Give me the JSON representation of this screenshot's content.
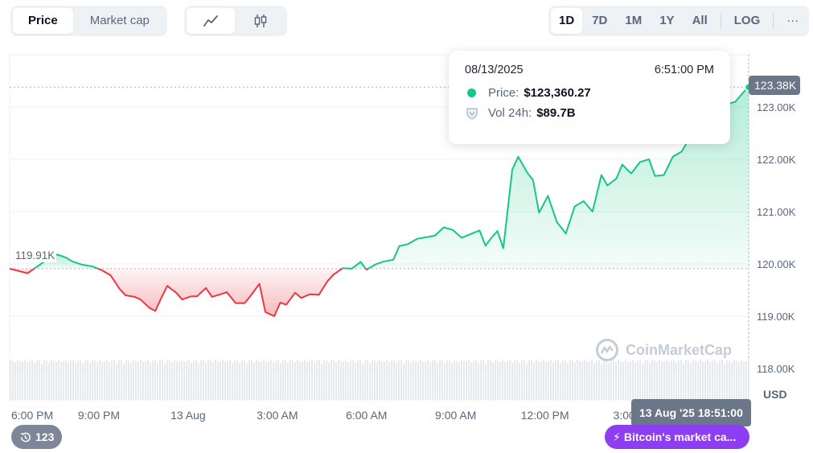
{
  "metric_tabs": [
    {
      "label": "Price",
      "active": true
    },
    {
      "label": "Market cap",
      "active": false
    }
  ],
  "chart_type_buttons": [
    {
      "icon": "line-chart-icon",
      "active": true
    },
    {
      "icon": "candlestick-icon",
      "active": false
    }
  ],
  "range_buttons": [
    {
      "label": "1D",
      "active": true
    },
    {
      "label": "7D",
      "active": false
    },
    {
      "label": "1M",
      "active": false
    },
    {
      "label": "1Y",
      "active": false
    },
    {
      "label": "All",
      "active": false
    },
    {
      "label": "LOG",
      "active": false
    }
  ],
  "more_label": "···",
  "tooltip": {
    "date": "08/13/2025",
    "time": "6:51:00 PM",
    "price_label": "Price:",
    "price_value": "$123,360.27",
    "vol_label": "Vol 24h:",
    "vol_value": "$89.7B"
  },
  "current_price_badge": "123.38K",
  "reference_price_badge": "119.91K",
  "crosshair_time": "13 Aug '25 18:51:00",
  "news_badge": "Bitcoin's market ca...",
  "history_count": "123",
  "currency": "USD",
  "watermark": "CoinMarketCap",
  "colors": {
    "up": "#16c784",
    "down": "#ea3943",
    "up_fill": "#16c784",
    "down_fill": "#ea3943",
    "volume": "#e6e9ee",
    "grid": "#eff2f5"
  },
  "chart_data": {
    "type": "line",
    "title": "",
    "xlabel": "",
    "ylabel": "USD",
    "baseline": 119910,
    "ylim": [
      117400,
      124000
    ],
    "y_ticks": [
      118000,
      119000,
      120000,
      121000,
      122000,
      123000
    ],
    "y_tick_labels": [
      "118.00K",
      "119.00K",
      "120.00K",
      "121.00K",
      "122.00K",
      "123.00K"
    ],
    "x_range": [
      0,
      24.85
    ],
    "x_ticks": [
      0,
      3,
      6,
      9,
      12,
      15,
      18,
      21,
      24
    ],
    "x_tick_labels": [
      "6:00 PM",
      "9:00 PM",
      "13 Aug",
      "3:00 AM",
      "6:00 AM",
      "9:00 AM",
      "12:00 PM",
      "3:00 PM",
      ""
    ],
    "x": [
      0,
      0.6,
      1.3,
      1.6,
      1.9,
      2.1,
      2.4,
      2.8,
      3.1,
      3.4,
      3.7,
      3.9,
      4.2,
      4.4,
      4.7,
      4.9,
      5.1,
      5.3,
      5.6,
      5.8,
      6.1,
      6.3,
      6.6,
      6.8,
      7.1,
      7.3,
      7.6,
      7.9,
      8.1,
      8.4,
      8.6,
      8.9,
      9.1,
      9.3,
      9.6,
      9.8,
      10.1,
      10.4,
      10.7,
      10.9,
      11.2,
      11.5,
      11.8,
      12.0,
      12.3,
      12.6,
      12.9,
      13.1,
      13.4,
      13.7,
      14.0,
      14.3,
      14.6,
      14.9,
      15.2,
      15.5,
      15.8,
      16.0,
      16.2,
      16.4,
      16.6,
      16.9,
      17.1,
      17.4,
      17.6,
      17.8,
      18.1,
      18.4,
      18.7,
      19.0,
      19.3,
      19.6,
      19.9,
      20.1,
      20.4,
      20.6,
      20.9,
      21.2,
      21.5,
      21.7,
      22.0,
      22.3,
      22.6,
      22.9,
      23.2,
      23.5,
      23.8,
      24.1,
      24.4,
      24.7,
      24.85
    ],
    "values": [
      119910,
      119820,
      120100,
      120180,
      120120,
      120050,
      119990,
      119950,
      119880,
      119780,
      119520,
      119400,
      119370,
      119320,
      119160,
      119100,
      119350,
      119580,
      119450,
      119320,
      119380,
      119380,
      119540,
      119370,
      119420,
      119460,
      119250,
      119250,
      119390,
      119620,
      119080,
      119000,
      119260,
      119220,
      119450,
      119350,
      119420,
      119410,
      119680,
      119800,
      119920,
      119910,
      120040,
      119890,
      119990,
      120050,
      120080,
      120340,
      120380,
      120480,
      120510,
      120540,
      120700,
      120650,
      120500,
      120570,
      120640,
      120350,
      120500,
      120630,
      120300,
      121800,
      122050,
      121750,
      121600,
      120980,
      121300,
      120800,
      120580,
      121100,
      121200,
      121000,
      121700,
      121500,
      121630,
      121900,
      121730,
      121950,
      122000,
      121680,
      121700,
      122050,
      122150,
      122450,
      122700,
      122800,
      123000,
      123050,
      123100,
      123300,
      123380
    ],
    "volume_level": 0.88
  }
}
